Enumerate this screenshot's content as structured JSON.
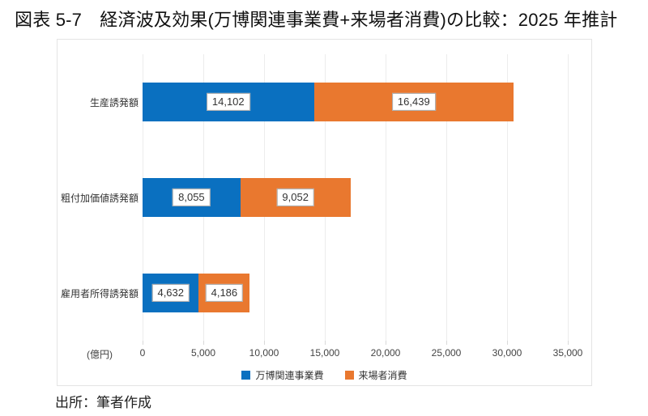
{
  "page": {
    "source": "出所：筆者作成"
  },
  "chart_data": {
    "type": "bar",
    "orientation": "horizontal",
    "stacked": true,
    "title": "図表 5-7　経済波及効果(万博関連事業費+来場者消費)の比較：2025 年推計",
    "categories": [
      "生産誘発額",
      "粗付加価値誘発額",
      "雇用者所得誘発額"
    ],
    "series": [
      {
        "name": "万博関連事業費",
        "color": "#0A70C0",
        "values": [
          14102,
          8055,
          4632
        ]
      },
      {
        "name": "来場者消費",
        "color": "#E9782F",
        "values": [
          16439,
          9052,
          4186
        ]
      }
    ],
    "xlabel": "(億円)",
    "xlim": [
      0,
      35000
    ],
    "x_tick_step": 5000,
    "grid": true,
    "legend_position": "bottom",
    "data_labels": true
  }
}
